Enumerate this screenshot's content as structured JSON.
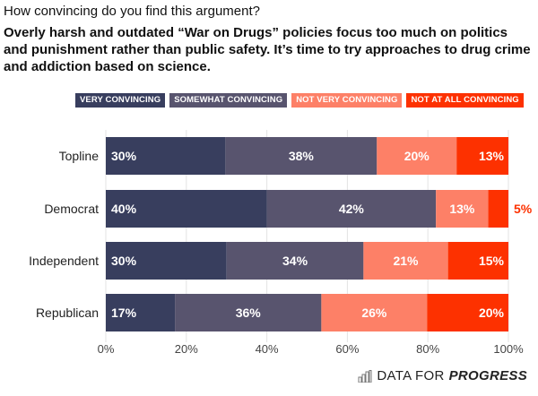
{
  "chart_data": {
    "type": "bar",
    "orientation": "horizontal",
    "stacked": true,
    "title": "How convincing do you find this argument?",
    "subtitle": "Overly harsh and outdated “War on Drugs” policies focus too much on politics and punishment rather than public safety. It’s time to try approaches to drug crime and addiction based on science.",
    "categories": [
      "Topline",
      "Democrat",
      "Independent",
      "Republican"
    ],
    "series": [
      {
        "name": "VERY CONVINCING",
        "color": "#383e5e",
        "values": [
          30,
          40,
          30,
          17
        ]
      },
      {
        "name": "SOMEWHAT CONVINCING",
        "color": "#58546e",
        "values": [
          38,
          42,
          34,
          36
        ]
      },
      {
        "name": "NOT VERY CONVINCING",
        "color": "#fd8067",
        "values": [
          20,
          13,
          21,
          26
        ]
      },
      {
        "name": "NOT AT ALL CONVINCING",
        "color": "#fd3100",
        "values": [
          13,
          5,
          15,
          20
        ]
      }
    ],
    "xlim": [
      0,
      100
    ],
    "xticks": [
      "0%",
      "20%",
      "40%",
      "60%",
      "80%",
      "100%"
    ],
    "xtick_values": [
      0,
      20,
      40,
      60,
      80,
      100
    ],
    "grid": true,
    "legend_position": "top"
  },
  "footer": {
    "brand_light": "DATA FOR",
    "brand_bold": "PROGRESS"
  }
}
